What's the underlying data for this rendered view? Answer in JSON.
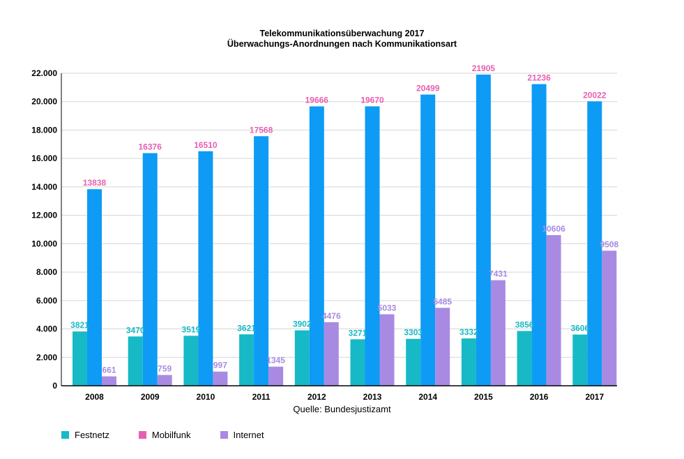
{
  "chart_data": {
    "type": "bar",
    "title": "Telekommunikationsüberwachung 2017",
    "subtitle": "Überwachungs-Anordnungen nach Kommunikationsart",
    "source": "Quelle: Bundesjustizamt",
    "categories": [
      "2008",
      "2009",
      "2010",
      "2011",
      "2012",
      "2013",
      "2014",
      "2015",
      "2016",
      "2017"
    ],
    "series": [
      {
        "name": "Festnetz",
        "color": "#17b9c6",
        "label_color": "#17b9c6",
        "values": [
          3821,
          3470,
          3519,
          3621,
          3902,
          3271,
          3303,
          3332,
          3856,
          3606
        ]
      },
      {
        "name": "Mobilfunk",
        "color": "#0d9bf5",
        "label_color": "#e75fb2",
        "legend_color": "#e75fb2",
        "values": [
          13838,
          16376,
          16510,
          17568,
          19666,
          19670,
          20499,
          21905,
          21236,
          20022
        ]
      },
      {
        "name": "Internet",
        "color": "#a98ae3",
        "label_color": "#a98ae3",
        "values": [
          661,
          759,
          997,
          1345,
          4476,
          5033,
          5485,
          7431,
          10606,
          9508
        ]
      }
    ],
    "ylim": [
      0,
      22000
    ],
    "yticks": [
      0,
      2000,
      4000,
      6000,
      8000,
      10000,
      12000,
      14000,
      16000,
      18000,
      20000,
      22000
    ],
    "ytick_labels": [
      "0",
      "2.000",
      "4.000",
      "6.000",
      "8.000",
      "10.000",
      "12.000",
      "14.000",
      "16.000",
      "18.000",
      "20.000",
      "22.000"
    ],
    "grid": true,
    "legend_position": "bottom-left",
    "xlabel": "",
    "ylabel": ""
  }
}
